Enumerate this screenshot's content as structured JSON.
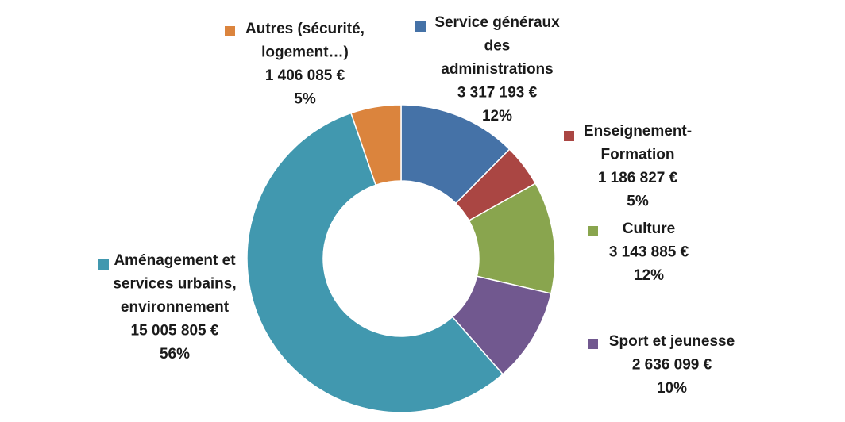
{
  "chart_data": {
    "type": "pie",
    "variant": "donut",
    "start": "12 o'clock, clockwise",
    "legend": "labels placed around the ring with colored square markers",
    "slices": [
      {
        "key": "services",
        "label_lines": [
          "Service généraux",
          "des",
          "administrations"
        ],
        "amount": "3 317 193 €",
        "pct": "12%",
        "value": 3317193,
        "color": "#4572A7"
      },
      {
        "key": "enseignement",
        "label_lines": [
          "Enseignement-",
          "Formation"
        ],
        "amount": "1 186 827 €",
        "pct": "5%",
        "value": 1186827,
        "color": "#AA4643"
      },
      {
        "key": "culture",
        "label_lines": [
          "Culture"
        ],
        "amount": "3 143 885 €",
        "pct": "12%",
        "value": 3143885,
        "color": "#89A54E"
      },
      {
        "key": "sport",
        "label_lines": [
          "Sport et jeunesse"
        ],
        "amount": "2 636 099 €",
        "pct": "10%",
        "value": 2636099,
        "color": "#71588F"
      },
      {
        "key": "amenagement",
        "label_lines": [
          "Aménagement et",
          "services urbains,",
          "environnement"
        ],
        "amount": "15 005 805 €",
        "pct": "56%",
        "value": 15005805,
        "color": "#4198AF"
      },
      {
        "key": "autres",
        "label_lines": [
          "Autres (sécurité,",
          "logement…)"
        ],
        "amount": "1 406 085 €",
        "pct": "5%",
        "value": 1406085,
        "color": "#DB843D"
      }
    ]
  }
}
